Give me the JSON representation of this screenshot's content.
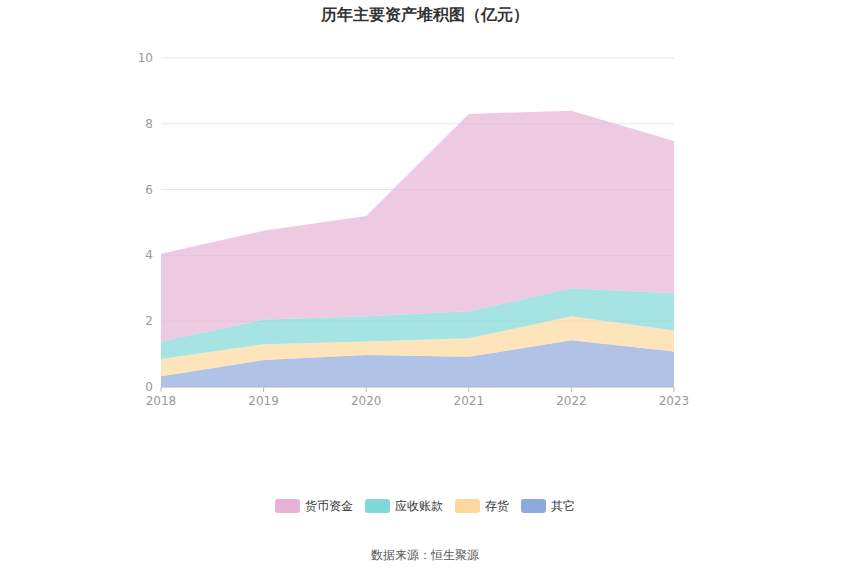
{
  "chart_data": {
    "type": "area",
    "title": "历年主要资产堆积图（亿元）",
    "source": "数据来源：恒生聚源",
    "categories": [
      "2018",
      "2019",
      "2020",
      "2021",
      "2022",
      "2023"
    ],
    "stacked": true,
    "grid": true,
    "legend": "bottom",
    "ylim": [
      0,
      10
    ],
    "yticks": [
      0,
      2,
      4,
      6,
      8,
      10
    ],
    "series": [
      {
        "name": "其它",
        "color": "#8fa9dc",
        "values": [
          0.33,
          0.82,
          0.97,
          0.92,
          1.42,
          1.08
        ]
      },
      {
        "name": "存货",
        "color": "#fdd89c",
        "values": [
          0.52,
          0.48,
          0.41,
          0.56,
          0.73,
          0.64
        ]
      },
      {
        "name": "应收账款",
        "color": "#80d8d8",
        "values": [
          0.53,
          0.75,
          0.77,
          0.82,
          0.85,
          1.13
        ]
      },
      {
        "name": "货币资金",
        "color": "#e6b3d6",
        "values": [
          2.67,
          2.7,
          3.05,
          6.0,
          5.4,
          4.63
        ]
      }
    ]
  }
}
